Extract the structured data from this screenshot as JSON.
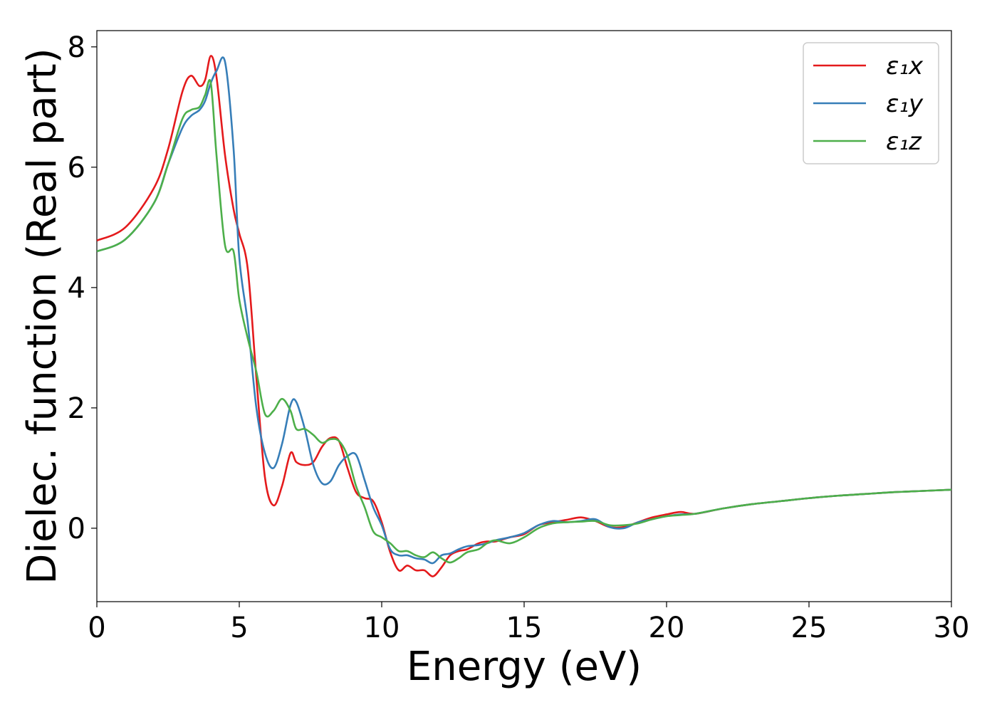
{
  "chart_data": {
    "type": "line",
    "title": "",
    "xlabel": "Energy (eV)",
    "ylabel": "Dielec. function (Real part)",
    "xlim": [
      0,
      30
    ],
    "ylim": [
      -1.22,
      8.27
    ],
    "xticks": [
      0,
      5,
      10,
      15,
      20,
      25,
      30
    ],
    "yticks": [
      0,
      2,
      4,
      6,
      8
    ],
    "grid": false,
    "legend_position": "top-right",
    "series": [
      {
        "name": "ε₁x",
        "color": "#e41a1c",
        "x": [
          0,
          1,
          2,
          2.5,
          3,
          3.3,
          3.6,
          3.8,
          4.0,
          4.2,
          4.5,
          4.8,
          5.0,
          5.3,
          5.6,
          5.9,
          6.2,
          6.5,
          6.8,
          7.0,
          7.3,
          7.6,
          7.9,
          8.2,
          8.5,
          8.8,
          9.1,
          9.4,
          9.7,
          10.0,
          10.3,
          10.6,
          10.9,
          11.2,
          11.5,
          11.8,
          12.1,
          12.4,
          12.7,
          13.0,
          13.4,
          13.7,
          14.0,
          14.5,
          15.0,
          15.5,
          16.0,
          16.5,
          17.0,
          17.5,
          18.0,
          18.5,
          19.0,
          19.5,
          20.0,
          20.5,
          21.0,
          22,
          23,
          24,
          25,
          26,
          27,
          28,
          29,
          30
        ],
        "y": [
          4.78,
          5.0,
          5.65,
          6.3,
          7.25,
          7.52,
          7.35,
          7.45,
          7.85,
          7.5,
          6.2,
          5.3,
          4.9,
          4.3,
          2.5,
          0.85,
          0.38,
          0.7,
          1.25,
          1.1,
          1.05,
          1.1,
          1.35,
          1.5,
          1.45,
          1.0,
          0.6,
          0.5,
          0.45,
          0.1,
          -0.4,
          -0.7,
          -0.62,
          -0.7,
          -0.7,
          -0.8,
          -0.65,
          -0.45,
          -0.38,
          -0.35,
          -0.25,
          -0.22,
          -0.22,
          -0.15,
          -0.1,
          0.05,
          0.1,
          0.14,
          0.18,
          0.12,
          0.02,
          0.02,
          0.1,
          0.18,
          0.23,
          0.27,
          0.24,
          0.33,
          0.4,
          0.45,
          0.5,
          0.54,
          0.57,
          0.6,
          0.62,
          0.64
        ]
      },
      {
        "name": "ε₁y",
        "color": "#377eb8",
        "x": [
          0,
          1,
          2,
          2.5,
          3,
          3.3,
          3.6,
          3.8,
          4.0,
          4.2,
          4.5,
          4.8,
          5.0,
          5.3,
          5.6,
          5.9,
          6.2,
          6.5,
          6.8,
          7.0,
          7.3,
          7.6,
          7.9,
          8.2,
          8.5,
          8.8,
          9.1,
          9.4,
          9.7,
          10.0,
          10.3,
          10.6,
          10.9,
          11.2,
          11.5,
          11.8,
          12.1,
          12.4,
          12.7,
          13.0,
          13.4,
          13.7,
          14.0,
          14.5,
          15.0,
          15.5,
          16.0,
          16.5,
          17.0,
          17.5,
          18.0,
          18.5,
          19.0,
          19.5,
          20.0,
          20.5,
          21.0,
          22,
          23,
          24,
          25,
          26,
          27,
          28,
          29,
          30
        ],
        "y": [
          4.6,
          4.8,
          5.4,
          6.05,
          6.65,
          6.85,
          6.95,
          7.1,
          7.4,
          7.6,
          7.75,
          6.3,
          4.5,
          3.4,
          2.0,
          1.25,
          1.0,
          1.4,
          2.05,
          2.1,
          1.65,
          1.05,
          0.75,
          0.78,
          1.05,
          1.2,
          1.22,
          0.8,
          0.35,
          0.05,
          -0.35,
          -0.45,
          -0.45,
          -0.5,
          -0.52,
          -0.58,
          -0.45,
          -0.42,
          -0.35,
          -0.3,
          -0.28,
          -0.25,
          -0.2,
          -0.15,
          -0.08,
          0.05,
          0.12,
          0.1,
          0.12,
          0.15,
          0.02,
          0.0,
          0.1,
          0.15,
          0.2,
          0.23,
          0.24,
          0.33,
          0.4,
          0.45,
          0.5,
          0.54,
          0.57,
          0.6,
          0.62,
          0.64
        ]
      },
      {
        "name": "ε₁z",
        "color": "#4daf4a",
        "x": [
          0,
          1,
          2,
          2.5,
          3,
          3.3,
          3.6,
          3.8,
          4.0,
          4.2,
          4.5,
          4.8,
          5.0,
          5.3,
          5.6,
          5.9,
          6.2,
          6.5,
          6.8,
          7.0,
          7.3,
          7.6,
          7.9,
          8.2,
          8.5,
          8.8,
          9.1,
          9.4,
          9.7,
          10.0,
          10.3,
          10.6,
          10.9,
          11.2,
          11.5,
          11.8,
          12.1,
          12.4,
          12.7,
          13.0,
          13.4,
          13.7,
          14.0,
          14.5,
          15.0,
          15.5,
          16.0,
          16.5,
          17.0,
          17.5,
          18.0,
          18.5,
          19.0,
          19.5,
          20.0,
          20.5,
          21.0,
          22,
          23,
          24,
          25,
          26,
          27,
          28,
          29,
          30
        ],
        "y": [
          4.6,
          4.8,
          5.4,
          6.05,
          6.8,
          6.95,
          7.0,
          7.2,
          7.4,
          6.2,
          4.7,
          4.6,
          3.8,
          3.15,
          2.6,
          1.9,
          1.95,
          2.15,
          1.95,
          1.65,
          1.65,
          1.55,
          1.42,
          1.48,
          1.45,
          1.2,
          0.7,
          0.35,
          -0.05,
          -0.15,
          -0.25,
          -0.38,
          -0.38,
          -0.45,
          -0.48,
          -0.4,
          -0.5,
          -0.57,
          -0.5,
          -0.4,
          -0.35,
          -0.25,
          -0.2,
          -0.25,
          -0.15,
          0.0,
          0.08,
          0.1,
          0.11,
          0.12,
          0.05,
          0.05,
          0.08,
          0.15,
          0.2,
          0.22,
          0.24,
          0.33,
          0.4,
          0.45,
          0.5,
          0.54,
          0.57,
          0.6,
          0.62,
          0.64
        ]
      }
    ]
  }
}
